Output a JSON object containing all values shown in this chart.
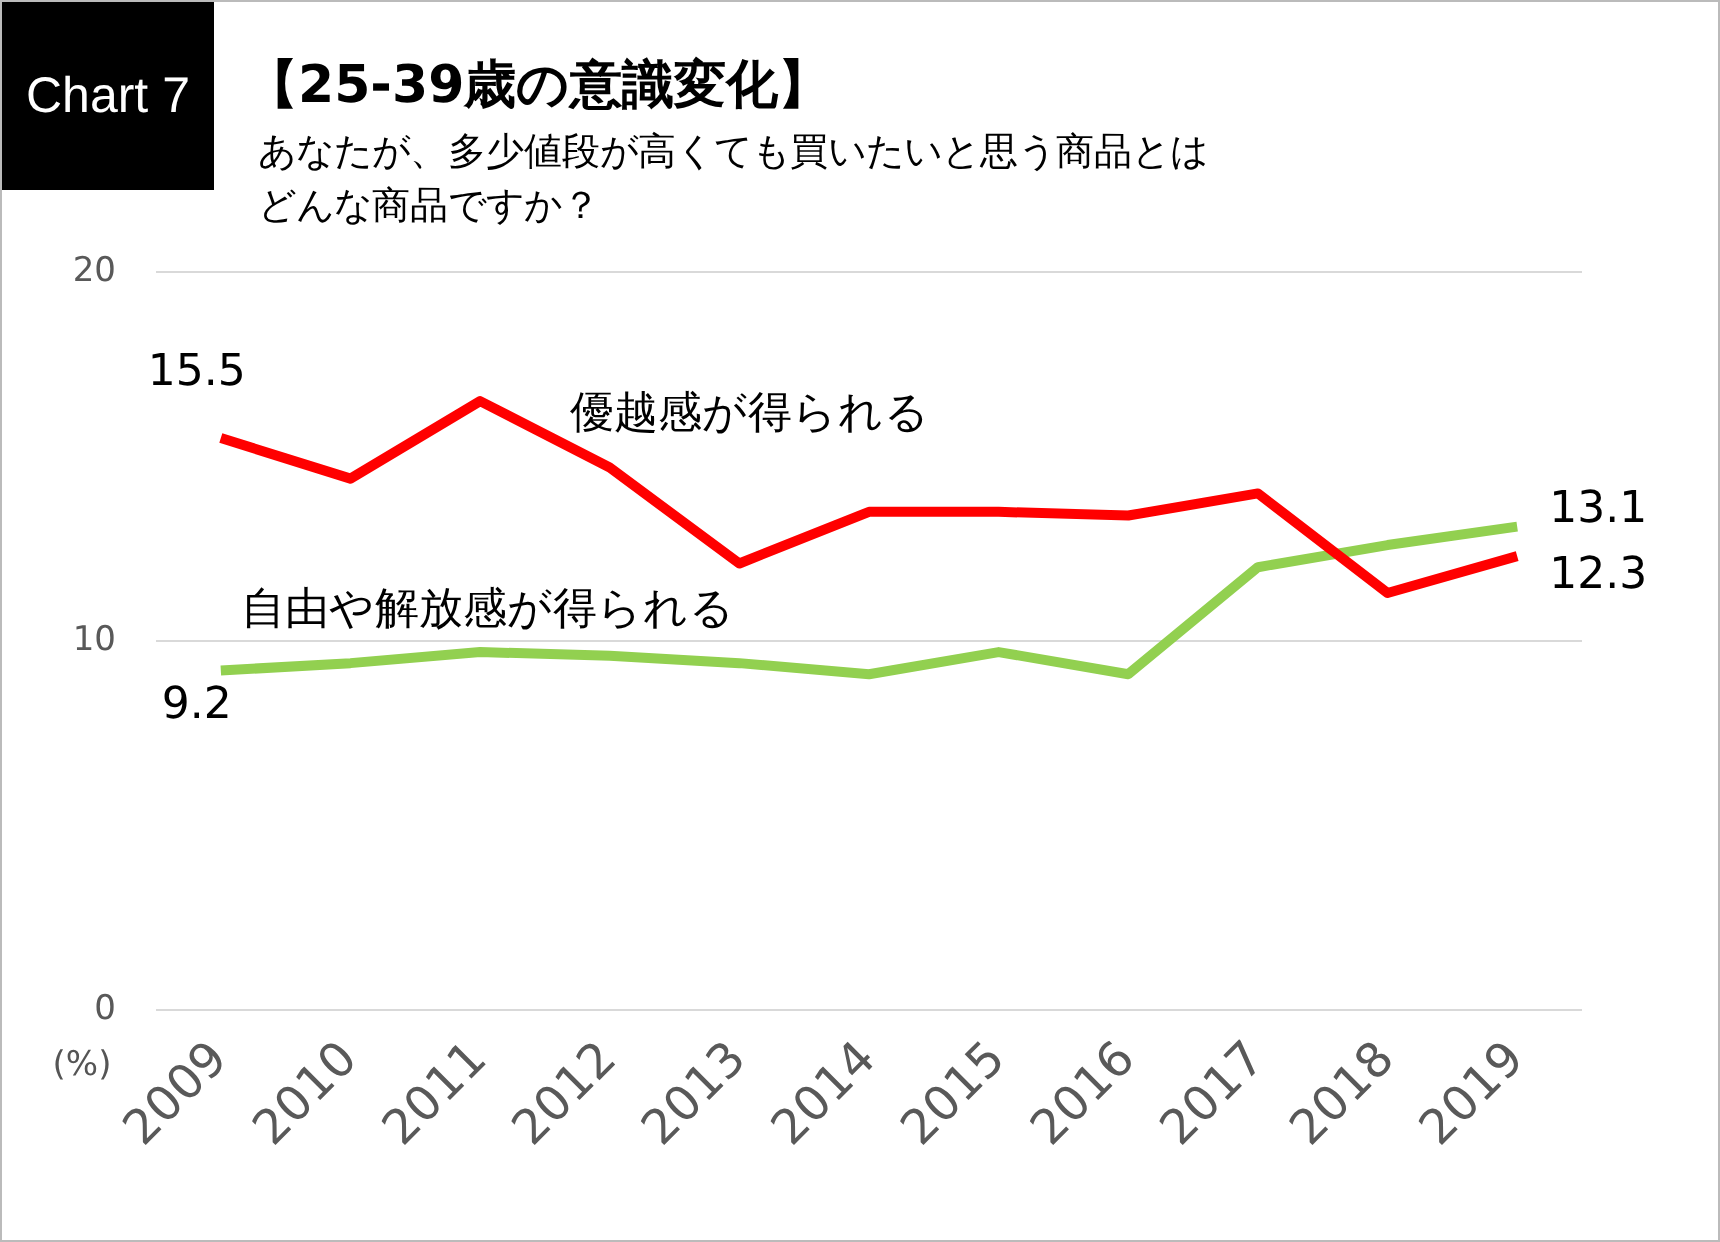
{
  "chart_data": {
    "type": "line",
    "title": "【25-39歳の意識変化】",
    "subtitle": "あなたが、多少値段が高くても買いたいと思う商品とはどんな商品ですか？",
    "ylabel": "(%)",
    "annotations": [
      "Chart 7"
    ],
    "categories": [
      "2009",
      "2010",
      "2011",
      "2012",
      "2013",
      "2014",
      "2015",
      "2016",
      "2017",
      "2018",
      "2019"
    ],
    "series": [
      {
        "name": "優越感が得られる",
        "color": "#ff0000",
        "values": [
          15.5,
          14.4,
          16.5,
          14.7,
          12.1,
          13.5,
          13.5,
          13.4,
          14.0,
          11.3,
          12.3
        ],
        "value_labels": [
          "15.5",
          null,
          null,
          null,
          null,
          null,
          null,
          null,
          null,
          null,
          "12.3"
        ]
      },
      {
        "name": "自由や解放感が得られる",
        "color": "#92d050",
        "values": [
          9.2,
          9.4,
          9.7,
          9.6,
          9.4,
          9.1,
          9.7,
          9.1,
          12.0,
          12.6,
          13.1
        ],
        "value_labels": [
          "9.2",
          null,
          null,
          null,
          null,
          null,
          null,
          null,
          null,
          null,
          "13.1"
        ]
      }
    ],
    "ylim": [
      0,
      20
    ],
    "yticks": [
      0,
      10,
      20
    ],
    "grid": "y",
    "legend": false,
    "marker": "none",
    "line_style": "solid"
  }
}
